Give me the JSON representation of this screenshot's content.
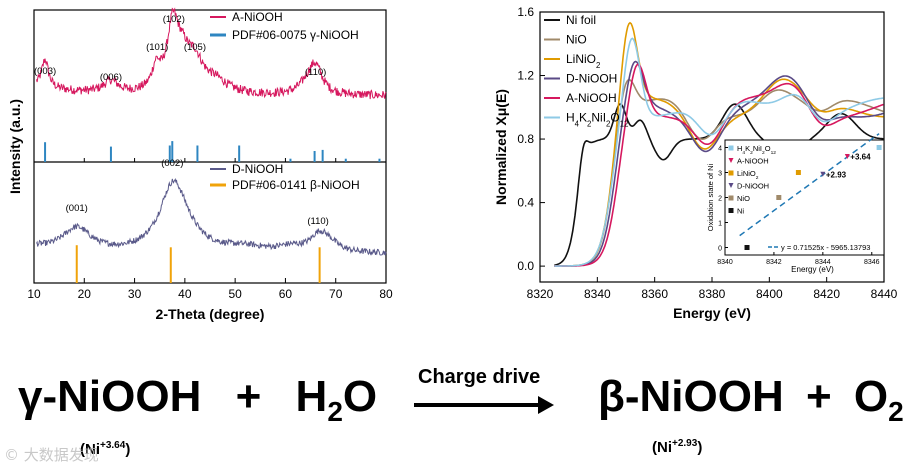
{
  "chart_data": [
    {
      "type": "line",
      "title": "",
      "xlabel": "2-Theta (degree)",
      "ylabel": "Intensity (a.u.)",
      "xlim": [
        10,
        80
      ],
      "xticks": [
        "10",
        "20",
        "30",
        "40",
        "50",
        "60",
        "70",
        "80"
      ],
      "panels": [
        {
          "name": "top",
          "series": [
            {
              "name": "A-NiOOH",
              "color": "#d6185e"
            }
          ],
          "reference": {
            "name": "PDF#06-0075 γ-NiOOH",
            "color": "#2e86c1",
            "peaks": [
              12.2,
              25.3,
              37.0,
              37.5,
              42.5,
              50.8,
              61.0,
              65.8,
              67.4,
              72.0,
              78.7
            ],
            "heights": [
              0.9,
              0.7,
              0.75,
              0.95,
              0.75,
              0.75,
              0.15,
              0.5,
              0.55,
              0.15,
              0.15
            ]
          },
          "peak_labels": [
            {
              "label": "(003)",
              "x": 12.2
            },
            {
              "label": "(006)",
              "x": 25.3
            },
            {
              "label": "(101)",
              "x": 34.5
            },
            {
              "label": "(102)",
              "x": 37.8
            },
            {
              "label": "(105)",
              "x": 42.0
            },
            {
              "label": "(110)",
              "x": 66.0
            }
          ]
        },
        {
          "name": "bottom",
          "series": [
            {
              "name": "D-NiOOH",
              "color": "#5a5a8a"
            }
          ],
          "reference": {
            "name": "PDF#06-0141 β-NiOOH",
            "color": "#f0a30a",
            "peaks": [
              18.5,
              37.2,
              66.8
            ],
            "heights": [
              0.9,
              0.85,
              0.85
            ]
          },
          "peak_labels": [
            {
              "label": "(001)",
              "x": 18.5
            },
            {
              "label": "(002)",
              "x": 37.5
            },
            {
              "label": "(110)",
              "x": 66.5
            }
          ]
        }
      ]
    },
    {
      "type": "line",
      "title": "",
      "xlabel": "Energy (eV)",
      "ylabel": "Normalized Xμ(E)",
      "xlim": [
        8320,
        8440
      ],
      "ylim": [
        -0.1,
        1.6
      ],
      "xticks": [
        "8320",
        "8340",
        "8360",
        "8380",
        "8400",
        "8420",
        "8440"
      ],
      "yticks": [
        "0.0",
        "0.4",
        "0.8",
        "1.2",
        "1.6"
      ],
      "series": [
        {
          "name": "Ni foil",
          "legend_main": "Ni foil",
          "color": "#111111",
          "edge": 8333,
          "white": 1.02,
          "peak_e": 8347
        },
        {
          "name": "NiO",
          "legend_main": "NiO",
          "color": "#a08a6a",
          "edge": 8345,
          "white": 1.25,
          "peak_e": 8350
        },
        {
          "name": "LiNiO2",
          "legend_main": "LiNiO",
          "legend_sub": "2",
          "color": "#e09b00",
          "edge": 8345,
          "white": 1.54,
          "peak_e": 8351
        },
        {
          "name": "D-NiOOH",
          "legend_main": "D-NiOOH",
          "color": "#5a4a86",
          "edge": 8346,
          "white": 1.28,
          "peak_e": 8353
        },
        {
          "name": "A-NiOOH",
          "legend_main": "A-NiOOH",
          "color": "#d6185e",
          "edge": 8347,
          "white": 1.32,
          "peak_e": 8354
        },
        {
          "name": "H4K2NiI2O12",
          "legend_main": "H",
          "legend_parts": [
            [
              "H",
              ""
            ],
            [
              "4",
              "sub"
            ],
            [
              "K",
              ""
            ],
            [
              "2",
              "sub"
            ],
            [
              "NiI",
              ""
            ],
            [
              "2",
              "sub"
            ],
            [
              "O",
              ""
            ],
            [
              "12",
              "sub"
            ]
          ],
          "color": "#8ecae6",
          "edge": 8345,
          "white": 1.52,
          "peak_e": 8352
        }
      ],
      "inset": {
        "xlabel": "Energy (eV)",
        "ylabel": "Oxidation state of Ni",
        "xlim": [
          8340,
          8346.5
        ],
        "ylim": [
          -0.3,
          4.3
        ],
        "xticks": [
          "8340",
          "8342",
          "8344",
          "8346"
        ],
        "yticks": [
          "0",
          "1",
          "2",
          "3",
          "4"
        ],
        "fit_label": "y = 0.71525x - 5965.13793",
        "fit": {
          "slope": 0.71525,
          "intercept": -5965.13793
        },
        "points": [
          {
            "name": "H4K2NiI2O12",
            "x": 8346.3,
            "y": 4.0,
            "color": "#8ecae6",
            "marker": "square"
          },
          {
            "name": "A-NiOOH",
            "x": 8345.0,
            "y": 3.64,
            "color": "#d6185e",
            "marker": "tri-down"
          },
          {
            "name": "LiNiO2",
            "x": 8343.0,
            "y": 3.0,
            "color": "#e09b00",
            "marker": "square"
          },
          {
            "name": "D-NiOOH",
            "x": 8344.0,
            "y": 2.93,
            "color": "#5a4a86",
            "marker": "tri-down"
          },
          {
            "name": "NiO",
            "x": 8342.2,
            "y": 2.0,
            "color": "#a08a6a",
            "marker": "square"
          },
          {
            "name": "Ni",
            "x": 8340.9,
            "y": 0.0,
            "color": "#111111",
            "marker": "square"
          }
        ],
        "annotations": [
          {
            "label": "+3.64",
            "x": 8345.0,
            "y": 3.64
          },
          {
            "label": "+2.93",
            "x": 8344.0,
            "y": 2.93
          }
        ],
        "legend": [
          {
            "label_parts": [
              [
                "H",
                ""
              ],
              [
                "4",
                "sub"
              ],
              [
                "K",
                ""
              ],
              [
                "2",
                "sub"
              ],
              [
                "NiI",
                ""
              ],
              [
                "2",
                "sub"
              ],
              [
                "O",
                ""
              ],
              [
                "12",
                "sub"
              ]
            ],
            "color": "#8ecae6",
            "marker": "square"
          },
          {
            "label_parts": [
              [
                "A-NiOOH",
                ""
              ]
            ],
            "color": "#d6185e",
            "marker": "tri-down"
          },
          {
            "label_parts": [
              [
                "LiNiO",
                ""
              ],
              [
                "2",
                "sub"
              ]
            ],
            "color": "#e09b00",
            "marker": "square"
          },
          {
            "label_parts": [
              [
                "D-NiOOH",
                ""
              ]
            ],
            "color": "#5a4a86",
            "marker": "tri-down"
          },
          {
            "label_parts": [
              [
                "NiO",
                ""
              ]
            ],
            "color": "#a08a6a",
            "marker": "square"
          },
          {
            "label_parts": [
              [
                "Ni",
                ""
              ]
            ],
            "color": "#111111",
            "marker": "square"
          }
        ]
      }
    }
  ],
  "equation": {
    "reactant_1": "γ-NiOOH",
    "plus_1": "+",
    "reactant_2_main": "H",
    "reactant_2_sub": "2",
    "reactant_2_end": "O",
    "arrow_label": "Charge drive",
    "product_1": "β-NiOOH",
    "plus_2": "+",
    "product_2_main": "O",
    "product_2_sub": "2",
    "ox_left_main": "(Ni",
    "ox_left_sup": "+3.64",
    "ox_left_end": ")",
    "ox_right_main": "(Ni",
    "ox_right_sup": "+2.93",
    "ox_right_end": ")"
  },
  "watermark": "© 大数据发现"
}
